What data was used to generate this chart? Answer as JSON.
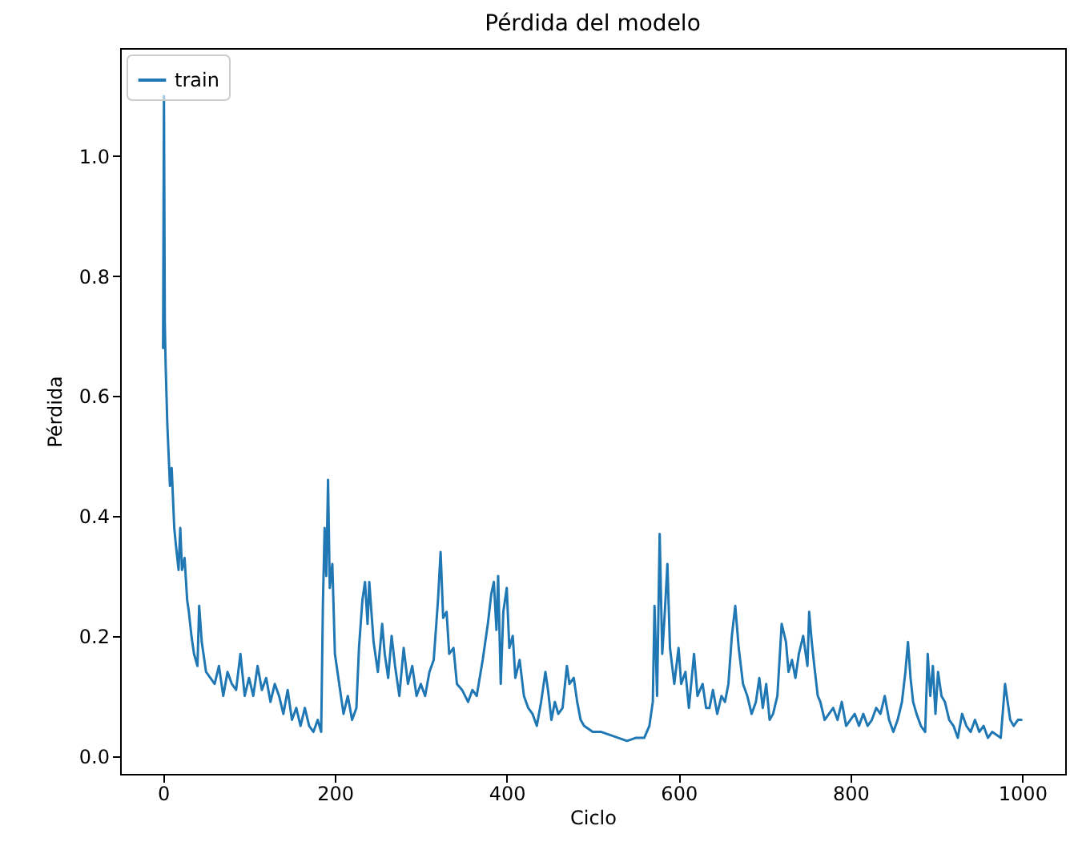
{
  "chart_data": {
    "type": "line",
    "title": "Pérdida del modelo",
    "xlabel": "Ciclo",
    "ylabel": "Pérdida",
    "x": [
      0,
      1,
      2,
      3,
      5,
      8,
      10,
      13,
      15,
      18,
      20,
      22,
      25,
      28,
      30,
      33,
      36,
      40,
      42,
      45,
      50,
      55,
      60,
      65,
      70,
      75,
      80,
      85,
      90,
      95,
      100,
      105,
      110,
      115,
      120,
      125,
      130,
      135,
      140,
      145,
      150,
      155,
      160,
      165,
      170,
      175,
      180,
      184,
      186,
      188,
      190,
      192,
      194,
      197,
      200,
      205,
      210,
      215,
      220,
      225,
      228,
      232,
      235,
      238,
      240,
      245,
      250,
      255,
      258,
      262,
      266,
      270,
      275,
      280,
      285,
      290,
      295,
      300,
      305,
      310,
      315,
      320,
      323,
      326,
      330,
      333,
      338,
      342,
      348,
      355,
      360,
      365,
      372,
      378,
      382,
      385,
      388,
      390,
      393,
      396,
      400,
      403,
      407,
      410,
      415,
      420,
      425,
      430,
      435,
      440,
      445,
      448,
      452,
      456,
      460,
      465,
      470,
      473,
      478,
      482,
      486,
      490,
      500,
      510,
      520,
      530,
      540,
      550,
      560,
      566,
      570,
      572,
      575,
      578,
      581,
      584,
      587,
      590,
      595,
      600,
      603,
      608,
      612,
      618,
      622,
      628,
      632,
      636,
      640,
      645,
      650,
      654,
      658,
      662,
      666,
      670,
      675,
      680,
      685,
      690,
      694,
      698,
      702,
      706,
      710,
      715,
      720,
      725,
      728,
      732,
      736,
      740,
      745,
      750,
      752,
      755,
      758,
      762,
      765,
      770,
      775,
      780,
      785,
      790,
      795,
      800,
      805,
      810,
      815,
      820,
      825,
      830,
      835,
      840,
      845,
      850,
      855,
      860,
      864,
      867,
      870,
      873,
      877,
      882,
      887,
      890,
      893,
      896,
      899,
      902,
      906,
      910,
      915,
      920,
      925,
      930,
      935,
      940,
      945,
      950,
      955,
      960,
      965,
      970,
      975,
      980,
      983,
      986,
      990,
      995,
      999
    ],
    "series": [
      {
        "name": "train",
        "color": "#1f77b4",
        "values": [
          0.68,
          1.1,
          0.72,
          0.65,
          0.55,
          0.45,
          0.48,
          0.38,
          0.35,
          0.31,
          0.38,
          0.31,
          0.33,
          0.26,
          0.24,
          0.2,
          0.17,
          0.15,
          0.25,
          0.19,
          0.14,
          0.13,
          0.12,
          0.15,
          0.1,
          0.14,
          0.12,
          0.11,
          0.17,
          0.1,
          0.13,
          0.1,
          0.15,
          0.11,
          0.13,
          0.09,
          0.12,
          0.1,
          0.07,
          0.11,
          0.06,
          0.08,
          0.05,
          0.08,
          0.05,
          0.04,
          0.06,
          0.04,
          0.25,
          0.38,
          0.3,
          0.46,
          0.28,
          0.32,
          0.17,
          0.12,
          0.07,
          0.1,
          0.06,
          0.08,
          0.18,
          0.26,
          0.29,
          0.22,
          0.29,
          0.19,
          0.14,
          0.22,
          0.17,
          0.13,
          0.2,
          0.15,
          0.1,
          0.18,
          0.12,
          0.15,
          0.1,
          0.12,
          0.1,
          0.14,
          0.16,
          0.26,
          0.34,
          0.23,
          0.24,
          0.17,
          0.18,
          0.12,
          0.11,
          0.09,
          0.11,
          0.1,
          0.16,
          0.22,
          0.27,
          0.29,
          0.21,
          0.3,
          0.12,
          0.24,
          0.28,
          0.18,
          0.2,
          0.13,
          0.16,
          0.1,
          0.08,
          0.07,
          0.05,
          0.09,
          0.14,
          0.11,
          0.06,
          0.09,
          0.07,
          0.08,
          0.15,
          0.12,
          0.13,
          0.09,
          0.06,
          0.05,
          0.04,
          0.04,
          0.035,
          0.03,
          0.025,
          0.03,
          0.03,
          0.05,
          0.09,
          0.25,
          0.1,
          0.37,
          0.17,
          0.24,
          0.32,
          0.18,
          0.12,
          0.18,
          0.12,
          0.14,
          0.08,
          0.17,
          0.1,
          0.12,
          0.08,
          0.08,
          0.11,
          0.07,
          0.1,
          0.09,
          0.12,
          0.2,
          0.25,
          0.18,
          0.12,
          0.1,
          0.07,
          0.09,
          0.13,
          0.08,
          0.12,
          0.06,
          0.07,
          0.1,
          0.22,
          0.19,
          0.14,
          0.16,
          0.13,
          0.17,
          0.2,
          0.15,
          0.24,
          0.19,
          0.15,
          0.1,
          0.09,
          0.06,
          0.07,
          0.08,
          0.06,
          0.09,
          0.05,
          0.06,
          0.07,
          0.05,
          0.07,
          0.05,
          0.06,
          0.08,
          0.07,
          0.1,
          0.06,
          0.04,
          0.06,
          0.09,
          0.14,
          0.19,
          0.13,
          0.09,
          0.07,
          0.05,
          0.04,
          0.17,
          0.1,
          0.15,
          0.07,
          0.14,
          0.1,
          0.09,
          0.06,
          0.05,
          0.03,
          0.07,
          0.05,
          0.04,
          0.06,
          0.04,
          0.05,
          0.03,
          0.04,
          0.035,
          0.03,
          0.12,
          0.09,
          0.06,
          0.05,
          0.06,
          0.06
        ]
      }
    ],
    "xlim": [
      -50,
      1050
    ],
    "xticks": [
      0,
      200,
      400,
      600,
      800,
      1000
    ],
    "ylim": [
      -0.03,
      1.18
    ],
    "yticks": [
      {
        "value": 0,
        "label": "0.0"
      },
      0.2,
      0.4,
      0.6,
      0.8,
      {
        "value": 1,
        "label": "1.0"
      }
    ],
    "legend": "top left",
    "line_style": "solid",
    "marker": "none",
    "grid": false
  }
}
